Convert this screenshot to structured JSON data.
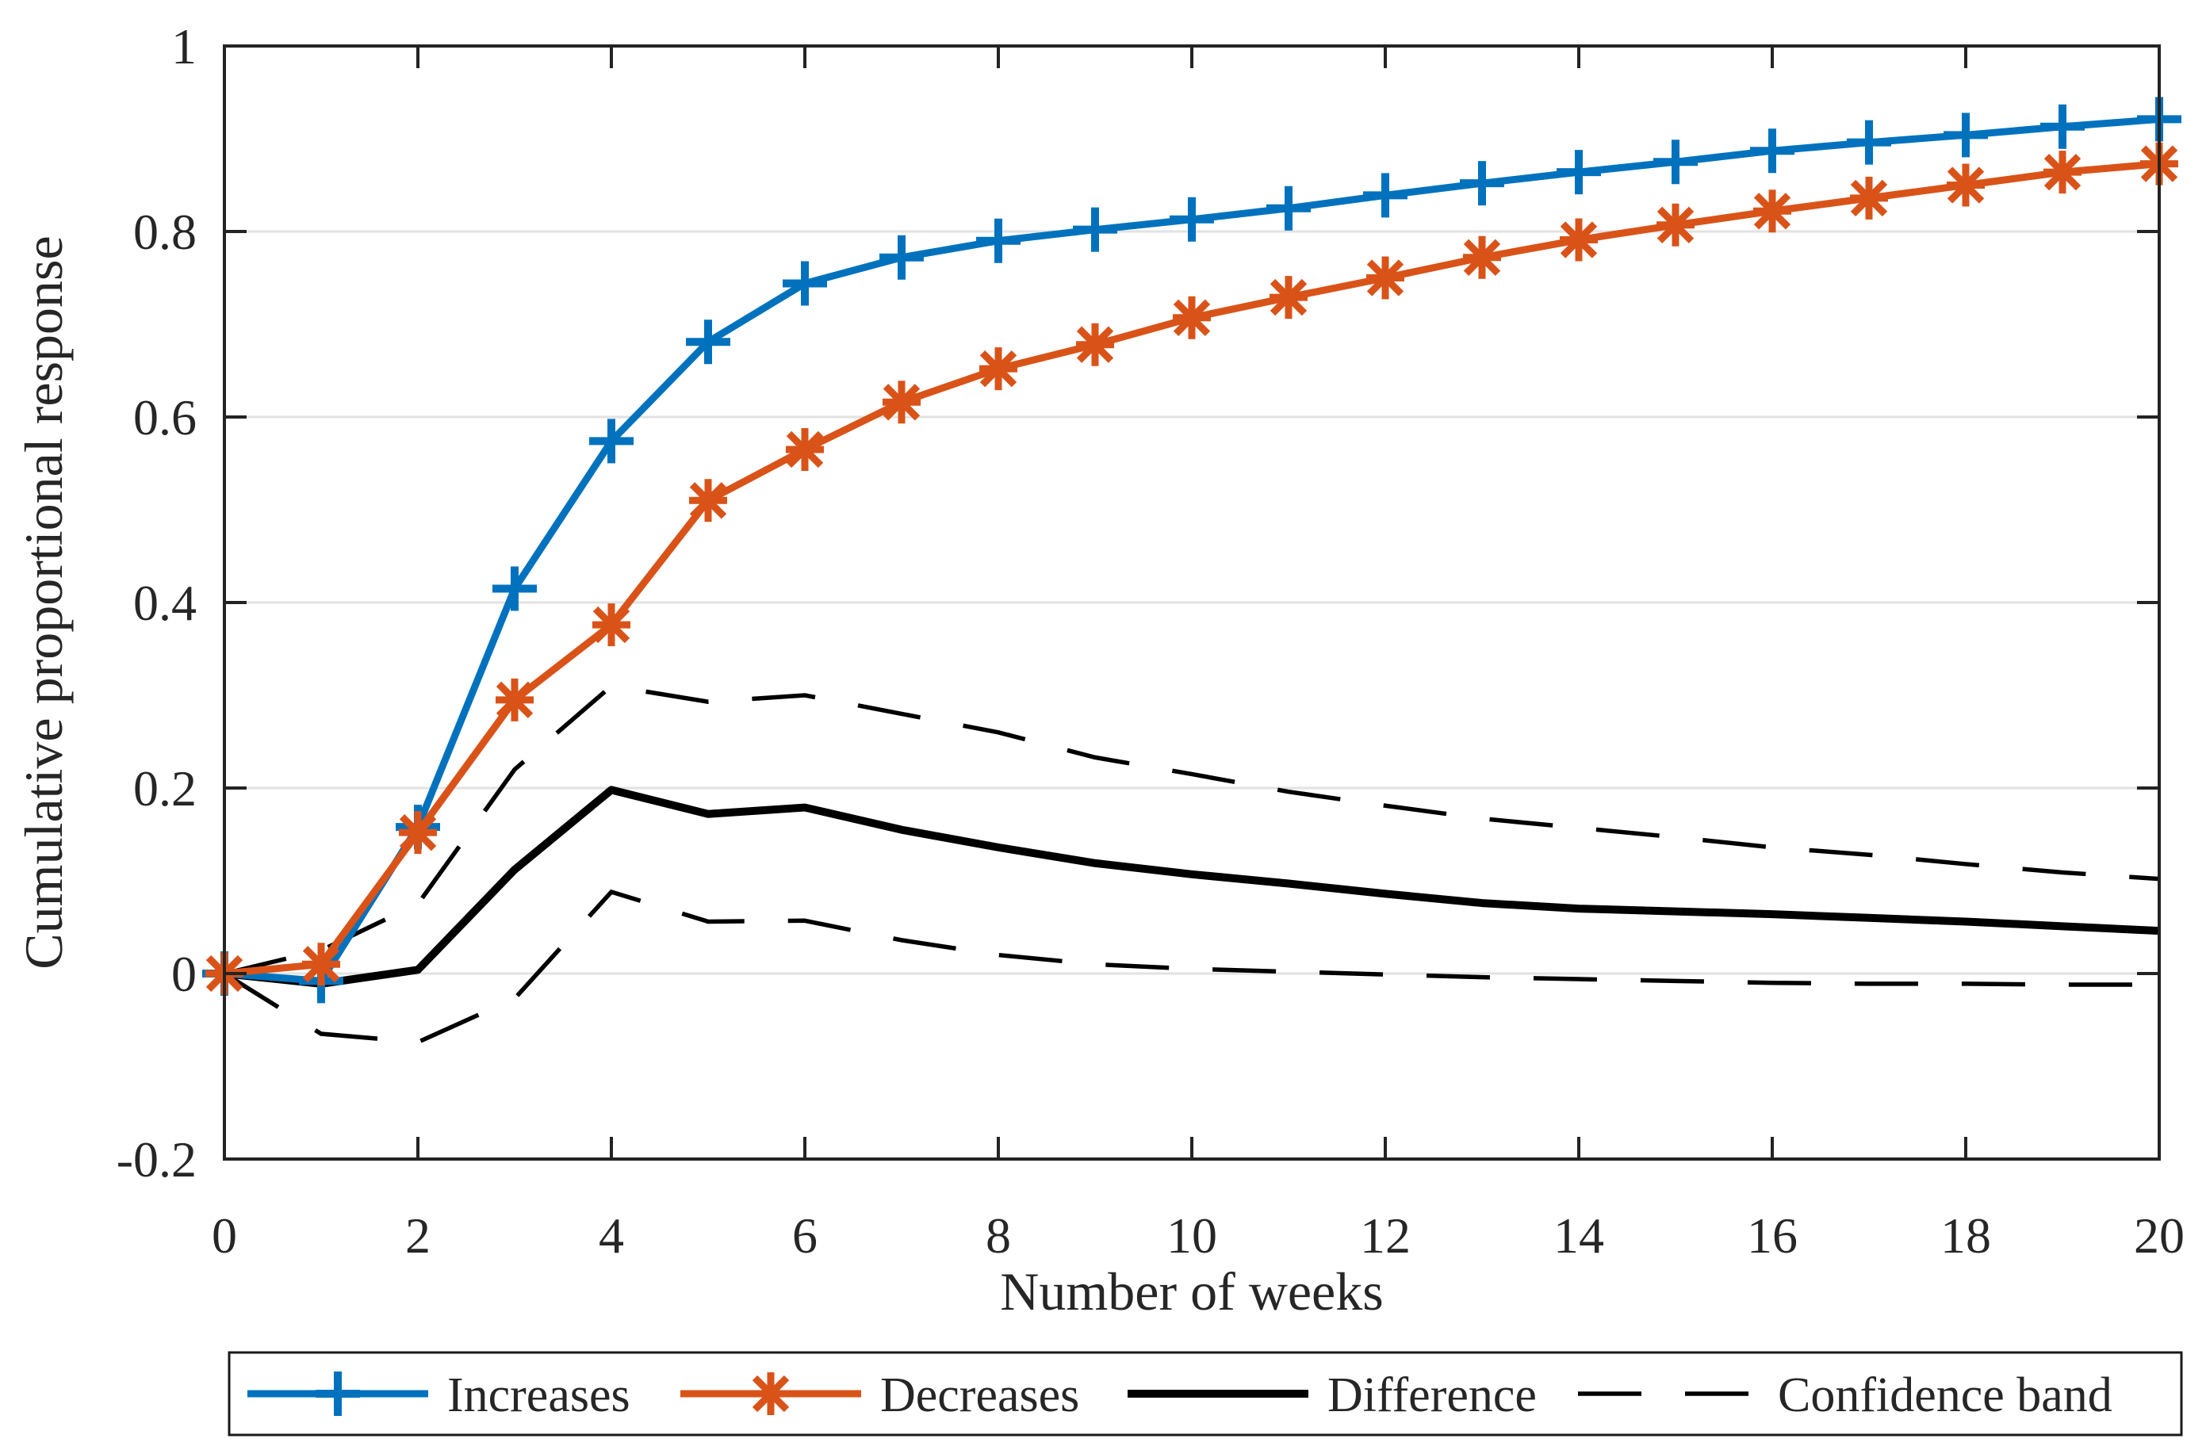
{
  "figure": {
    "background": "#ffffff",
    "axes_color": "#232323",
    "grid_color": "#e2e2e2",
    "text_color": "#262626"
  },
  "chart_data": {
    "type": "line",
    "title": "",
    "xlabel": "Number of weeks",
    "ylabel": "Cumulative proportional response",
    "xlim": [
      0,
      20
    ],
    "ylim": [
      -0.2,
      1
    ],
    "xticks": [
      0,
      2,
      4,
      6,
      8,
      10,
      12,
      14,
      16,
      18,
      20
    ],
    "yticks": [
      -0.2,
      0,
      0.2,
      0.4,
      0.6,
      0.8,
      1
    ],
    "ytick_labels": [
      "-0.2",
      "0",
      "0.2",
      "0.4",
      "0.6",
      "0.8",
      "1"
    ],
    "grid": "horizontal",
    "legend_position": "bottom",
    "x": [
      0,
      1,
      2,
      3,
      4,
      5,
      6,
      7,
      8,
      9,
      10,
      11,
      12,
      13,
      14,
      15,
      16,
      17,
      18,
      19,
      20
    ],
    "series": [
      {
        "name": "Increases",
        "color": "#0072BD",
        "marker": "plus",
        "linestyle": "solid",
        "values": [
          0,
          -0.008,
          0.158,
          0.415,
          0.574,
          0.681,
          0.744,
          0.772,
          0.79,
          0.802,
          0.813,
          0.825,
          0.839,
          0.852,
          0.864,
          0.875,
          0.887,
          0.896,
          0.904,
          0.913,
          0.921
        ]
      },
      {
        "name": "Decreases",
        "color": "#D95319",
        "marker": "asterisk",
        "linestyle": "solid",
        "values": [
          0,
          0.01,
          0.152,
          0.295,
          0.376,
          0.51,
          0.565,
          0.616,
          0.652,
          0.678,
          0.707,
          0.729,
          0.75,
          0.772,
          0.791,
          0.807,
          0.822,
          0.836,
          0.85,
          0.864,
          0.873
        ]
      },
      {
        "name": "Difference",
        "color": "#000000",
        "marker": "none",
        "linestyle": "solid",
        "values": [
          0,
          -0.011,
          0.004,
          0.112,
          0.198,
          0.172,
          0.179,
          0.155,
          0.136,
          0.119,
          0.107,
          0.097,
          0.086,
          0.076,
          0.07,
          0.067,
          0.064,
          0.06,
          0.056,
          0.051,
          0.046
        ]
      },
      {
        "name": "Confidence band",
        "color": "#000000",
        "marker": "none",
        "linestyle": "dashed",
        "upper": [
          0,
          0.025,
          0.075,
          0.22,
          0.31,
          0.293,
          0.3,
          0.28,
          0.26,
          0.233,
          0.215,
          0.196,
          0.181,
          0.167,
          0.157,
          0.147,
          0.136,
          0.128,
          0.118,
          0.109,
          0.102
        ],
        "lower": [
          0,
          -0.065,
          -0.074,
          -0.027,
          0.088,
          0.056,
          0.057,
          0.036,
          0.02,
          0.01,
          0.005,
          0.002,
          -0.001,
          -0.004,
          -0.006,
          -0.008,
          -0.01,
          -0.011,
          -0.011,
          -0.012,
          -0.012
        ]
      }
    ]
  }
}
